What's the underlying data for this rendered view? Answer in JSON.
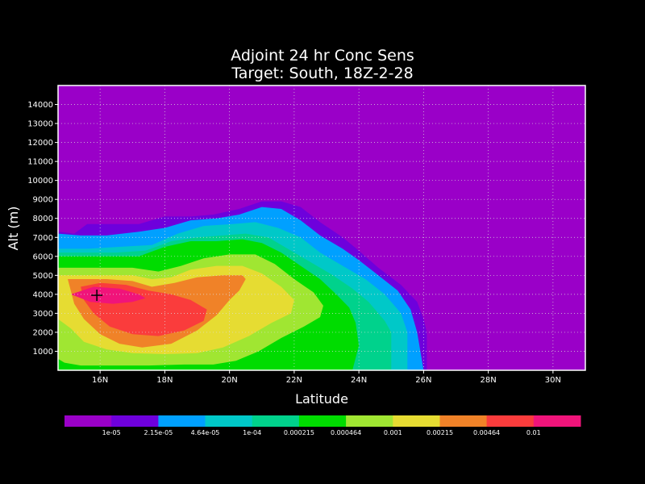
{
  "chart_data": {
    "type": "heatmap",
    "title": "Adjoint 24 hr Conc Sens",
    "subtitle": "Target: South, 18Z-2-28",
    "xlabel": "Latitude",
    "ylabel": "Alt (m)",
    "xlim": [
      14.7,
      31.0
    ],
    "ylim": [
      0,
      15000
    ],
    "x_ticks": [
      16,
      18,
      20,
      22,
      24,
      26,
      28,
      30
    ],
    "x_tick_labels": [
      "16N",
      "18N",
      "20N",
      "22N",
      "24N",
      "26N",
      "28N",
      "30N"
    ],
    "y_ticks": [
      1000,
      2000,
      3000,
      4000,
      5000,
      6000,
      7000,
      8000,
      9000,
      10000,
      11000,
      12000,
      13000,
      14000
    ],
    "y_tick_labels": [
      "1000",
      "2000",
      "3000",
      "4000",
      "5000",
      "6000",
      "7000",
      "8000",
      "9000",
      "10000",
      "11000",
      "12000",
      "13000",
      "14000"
    ],
    "grid": true,
    "background_color": "#9a00c8",
    "marker": {
      "lat": 15.9,
      "alt": 3950,
      "symbol": "+"
    },
    "levels": [
      {
        "threshold": "1e-05",
        "color": "#9a00c8",
        "region": [
          [
            14.7,
            7500
          ],
          [
            15.2,
            7300
          ],
          [
            15.6,
            7800
          ],
          [
            16.4,
            7800
          ],
          [
            17.2,
            7800
          ],
          [
            18.0,
            8300
          ],
          [
            18.8,
            8200
          ],
          [
            19.5,
            8400
          ],
          [
            20.3,
            8700
          ],
          [
            21.0,
            9000
          ],
          [
            21.6,
            9100
          ],
          [
            22.2,
            8900
          ],
          [
            22.8,
            8100
          ],
          [
            23.5,
            7200
          ],
          [
            24.0,
            6500
          ],
          [
            24.6,
            5600
          ],
          [
            25.3,
            4700
          ],
          [
            25.8,
            3800
          ],
          [
            26.2,
            2800
          ],
          [
            26.4,
            2000
          ],
          [
            26.4,
            0
          ],
          [
            14.7,
            0
          ]
        ]
      },
      {
        "threshold": "2.15e-05",
        "color": "#6e00dc",
        "region": [
          [
            14.7,
            7300
          ],
          [
            15.2,
            7200
          ],
          [
            15.6,
            7700
          ],
          [
            16.4,
            7700
          ],
          [
            17.2,
            7700
          ],
          [
            18.0,
            8100
          ],
          [
            18.8,
            8100
          ],
          [
            19.5,
            8200
          ],
          [
            20.3,
            8500
          ],
          [
            21.0,
            8900
          ],
          [
            21.6,
            8900
          ],
          [
            22.2,
            8600
          ],
          [
            22.8,
            7800
          ],
          [
            23.5,
            7000
          ],
          [
            24.0,
            6300
          ],
          [
            24.6,
            5400
          ],
          [
            25.3,
            4500
          ],
          [
            25.8,
            3600
          ],
          [
            26.0,
            2700
          ],
          [
            26.1,
            2000
          ],
          [
            26.1,
            0
          ],
          [
            14.7,
            0
          ]
        ]
      },
      {
        "threshold": "4.64e-05",
        "color": "#00a0ff",
        "region": [
          [
            14.7,
            7200
          ],
          [
            15.4,
            7100
          ],
          [
            16.2,
            7100
          ],
          [
            17.2,
            7300
          ],
          [
            18.0,
            7500
          ],
          [
            18.8,
            7900
          ],
          [
            19.6,
            8000
          ],
          [
            20.3,
            8200
          ],
          [
            21.0,
            8600
          ],
          [
            21.6,
            8500
          ],
          [
            22.2,
            7900
          ],
          [
            22.8,
            7100
          ],
          [
            23.5,
            6400
          ],
          [
            24.0,
            5800
          ],
          [
            24.6,
            5000
          ],
          [
            25.2,
            4200
          ],
          [
            25.6,
            3200
          ],
          [
            25.8,
            2000
          ],
          [
            26.0,
            0
          ],
          [
            14.7,
            0
          ]
        ]
      },
      {
        "threshold": "1e-04",
        "color": "#00c8c8",
        "region": [
          [
            14.7,
            6400
          ],
          [
            15.6,
            6400
          ],
          [
            16.6,
            6500
          ],
          [
            17.6,
            6600
          ],
          [
            18.4,
            7200
          ],
          [
            19.2,
            7600
          ],
          [
            20.1,
            7700
          ],
          [
            20.8,
            7800
          ],
          [
            21.5,
            7500
          ],
          [
            22.2,
            7000
          ],
          [
            22.8,
            6200
          ],
          [
            23.5,
            5500
          ],
          [
            24.2,
            4800
          ],
          [
            24.8,
            4000
          ],
          [
            25.3,
            3000
          ],
          [
            25.5,
            2000
          ],
          [
            25.5,
            0
          ],
          [
            14.7,
            0
          ]
        ]
      },
      {
        "threshold": "0.000215",
        "color": "#00d28c",
        "region": [
          [
            14.7,
            6200
          ],
          [
            15.5,
            6200
          ],
          [
            16.5,
            6200
          ],
          [
            17.4,
            6300
          ],
          [
            18.2,
            6800
          ],
          [
            19.0,
            7000
          ],
          [
            19.8,
            7100
          ],
          [
            20.5,
            7200
          ],
          [
            21.2,
            7000
          ],
          [
            21.8,
            6400
          ],
          [
            22.5,
            5700
          ],
          [
            23.2,
            5000
          ],
          [
            23.8,
            4300
          ],
          [
            24.3,
            3600
          ],
          [
            24.8,
            2600
          ],
          [
            25.0,
            2000
          ],
          [
            25.0,
            0
          ],
          [
            14.7,
            0
          ]
        ]
      },
      {
        "threshold": "0.000464",
        "color": "#00dc00",
        "region": [
          [
            14.7,
            6000
          ],
          [
            15.4,
            6000
          ],
          [
            16.3,
            6000
          ],
          [
            17.2,
            6000
          ],
          [
            18.0,
            6500
          ],
          [
            18.8,
            6800
          ],
          [
            19.6,
            6800
          ],
          [
            20.4,
            6900
          ],
          [
            21.0,
            6700
          ],
          [
            21.6,
            6200
          ],
          [
            22.2,
            5500
          ],
          [
            22.8,
            4800
          ],
          [
            23.3,
            4000
          ],
          [
            23.7,
            3300
          ],
          [
            23.9,
            2500
          ],
          [
            24.0,
            1300
          ],
          [
            23.8,
            0
          ],
          [
            14.7,
            0
          ]
        ]
      },
      {
        "threshold": "0.001",
        "color": "#a0e632",
        "region": [
          [
            14.7,
            5400
          ],
          [
            15.3,
            5400
          ],
          [
            16.1,
            5400
          ],
          [
            17.0,
            5400
          ],
          [
            17.8,
            5200
          ],
          [
            18.5,
            5500
          ],
          [
            19.2,
            5900
          ],
          [
            20.0,
            6100
          ],
          [
            20.8,
            6100
          ],
          [
            21.4,
            5600
          ],
          [
            22.0,
            4800
          ],
          [
            22.6,
            4100
          ],
          [
            22.9,
            3400
          ],
          [
            22.8,
            2800
          ],
          [
            22.3,
            2300
          ],
          [
            21.6,
            1700
          ],
          [
            20.9,
            1000
          ],
          [
            20.2,
            500
          ],
          [
            19.5,
            300
          ],
          [
            18.6,
            300
          ],
          [
            17.5,
            250
          ],
          [
            16.5,
            250
          ],
          [
            15.4,
            250
          ],
          [
            14.9,
            400
          ],
          [
            14.7,
            600
          ]
        ]
      },
      {
        "threshold": "0.00215",
        "color": "#e6dc32",
        "region": [
          [
            14.7,
            5000
          ],
          [
            15.3,
            5000
          ],
          [
            16.1,
            5000
          ],
          [
            17.0,
            5000
          ],
          [
            17.6,
            4800
          ],
          [
            18.2,
            4900
          ],
          [
            18.8,
            5300
          ],
          [
            19.6,
            5500
          ],
          [
            20.4,
            5500
          ],
          [
            21.0,
            5100
          ],
          [
            21.6,
            4400
          ],
          [
            22.0,
            3700
          ],
          [
            21.9,
            3000
          ],
          [
            21.3,
            2500
          ],
          [
            20.6,
            1800
          ],
          [
            19.8,
            1200
          ],
          [
            19.0,
            900
          ],
          [
            18.0,
            850
          ],
          [
            17.0,
            900
          ],
          [
            16.2,
            1100
          ],
          [
            15.5,
            1500
          ],
          [
            15.1,
            2200
          ],
          [
            14.7,
            2700
          ]
        ]
      },
      {
        "threshold": "0.00464",
        "color": "#f08228",
        "region": [
          [
            15.0,
            4800
          ],
          [
            15.5,
            4800
          ],
          [
            16.2,
            4800
          ],
          [
            17.0,
            4700
          ],
          [
            17.6,
            4400
          ],
          [
            18.3,
            4600
          ],
          [
            19.0,
            4900
          ],
          [
            19.8,
            5000
          ],
          [
            20.4,
            5000
          ],
          [
            20.5,
            4800
          ],
          [
            20.3,
            4200
          ],
          [
            20.0,
            3700
          ],
          [
            19.6,
            2900
          ],
          [
            19.0,
            2100
          ],
          [
            18.2,
            1400
          ],
          [
            17.3,
            1200
          ],
          [
            16.6,
            1400
          ],
          [
            16.0,
            1900
          ],
          [
            15.5,
            2700
          ],
          [
            15.2,
            3500
          ]
        ]
      },
      {
        "threshold": "0.01",
        "color": "#fa3c3c",
        "region": [
          [
            15.4,
            4400
          ],
          [
            16.0,
            4600
          ],
          [
            16.8,
            4500
          ],
          [
            17.5,
            4200
          ],
          [
            18.2,
            4000
          ],
          [
            18.8,
            3700
          ],
          [
            19.3,
            3200
          ],
          [
            19.2,
            2600
          ],
          [
            18.6,
            2100
          ],
          [
            17.8,
            1800
          ],
          [
            17.0,
            1900
          ],
          [
            16.3,
            2300
          ],
          [
            15.8,
            3000
          ],
          [
            15.5,
            3700
          ]
        ]
      },
      {
        "threshold": "",
        "color": "#f0147a",
        "region": [
          [
            15.1,
            4000
          ],
          [
            15.8,
            4400
          ],
          [
            16.6,
            4300
          ],
          [
            17.2,
            4000
          ],
          [
            17.4,
            3800
          ],
          [
            17.0,
            3600
          ],
          [
            16.4,
            3500
          ],
          [
            15.7,
            3600
          ]
        ]
      }
    ],
    "colorbar": {
      "colors": [
        "#9a00c8",
        "#6e00dc",
        "#00a0ff",
        "#00c8c8",
        "#00d28c",
        "#00dc00",
        "#a0e632",
        "#e6dc32",
        "#f08228",
        "#fa3c3c",
        "#f0147a"
      ],
      "labels": [
        "1e-05",
        "2.15e-05",
        "4.64e-05",
        "1e-04",
        "0.000215",
        "0.000464",
        "0.001",
        "0.00215",
        "0.00464",
        "0.01"
      ]
    }
  }
}
